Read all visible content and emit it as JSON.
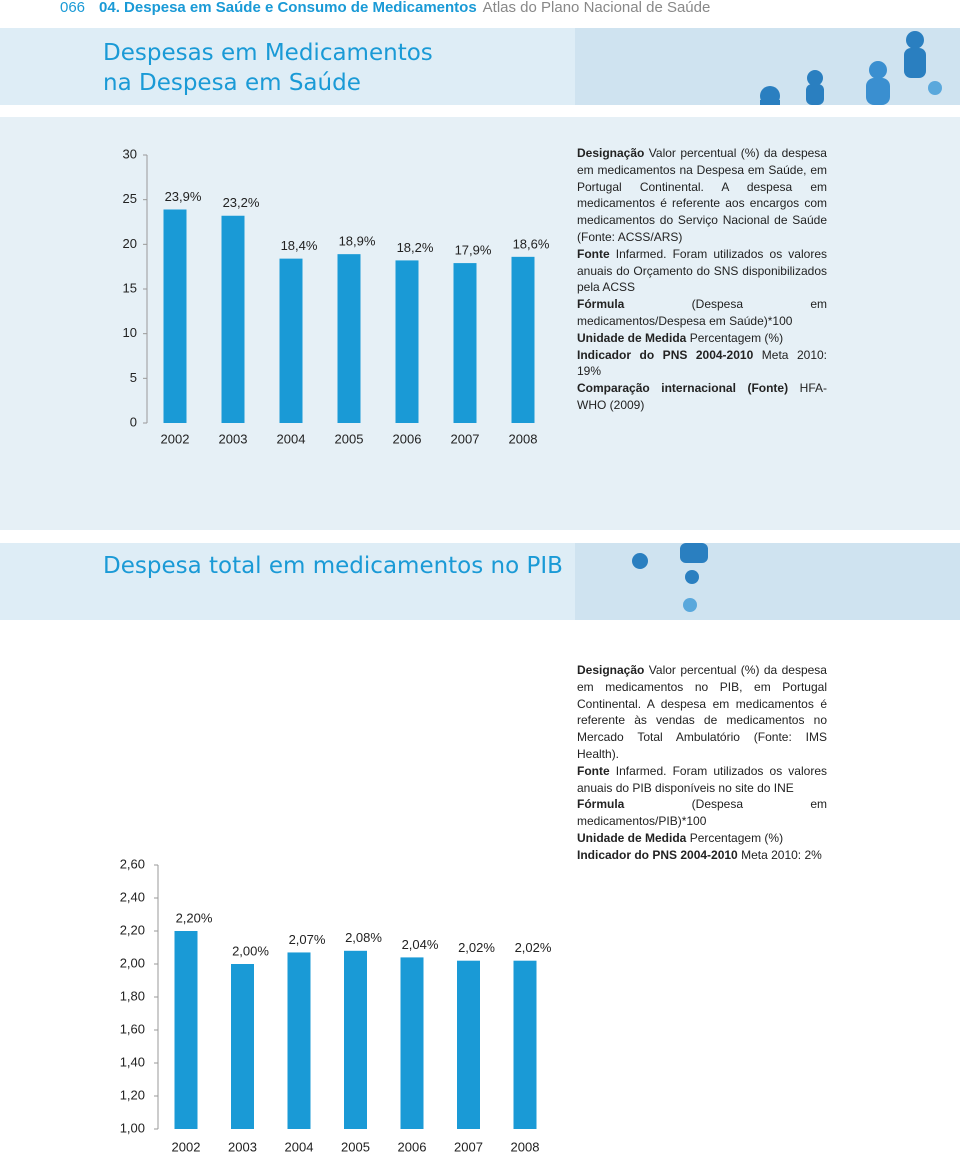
{
  "header": {
    "page": "066",
    "chapter": "04. Despesa em Saúde e Consumo de Medicamentos",
    "book": "Atlas do Plano Nacional de Saúde"
  },
  "sections": [
    {
      "title": [
        "Despesas em Medicamentos",
        "na Despesa em Saúde"
      ],
      "items": [
        {
          "label": "Designação",
          "text": "Valor percentual (%) da despesa em medicamentos na Despesa em Saúde, em Portugal Continental. A despesa em medicamentos é referente aos encargos com medicamentos do Serviço Nacional de Saúde (Fonte: ACSS/ARS)"
        },
        {
          "label": "Fonte",
          "text": "Infarmed. Foram utilizados os valores anuais do Orçamento do SNS disponibilizados pela ACSS"
        },
        {
          "label": "Fórmula",
          "text": "(Despesa em medicamentos/Despesa em Saúde)*100"
        },
        {
          "label": "Unidade de Medida",
          "text": "Percentagem (%)"
        },
        {
          "label": "Indicador do PNS 2004-2010",
          "text": "Meta 2010: 19%"
        },
        {
          "label": "Comparação internacional (Fonte)",
          "text": "HFA-WHO (2009)"
        }
      ]
    },
    {
      "title": [
        "Despesa total em medicamentos no PIB"
      ],
      "items": [
        {
          "label": "Designação",
          "text": "Valor percentual (%) da despesa em medicamentos no PIB, em Portugal Continental. A despesa em medicamentos é referente às vendas de medicamentos no Mercado Total Ambulatório (Fonte: IMS Health)."
        },
        {
          "label": "Fonte",
          "text": "Infarmed. Foram utilizados os valores anuais do PIB disponíveis no site do INE"
        },
        {
          "label": "Fórmula",
          "text": "(Despesa em medicamentos/PIB)*100"
        },
        {
          "label": "Unidade de Medida",
          "text": "Percentagem (%)"
        },
        {
          "label": "Indicador do PNS 2004-2010",
          "text": "Meta 2010: 2%"
        }
      ]
    }
  ],
  "chart_data": [
    {
      "type": "bar",
      "color": "#1a9ad6",
      "categories": [
        "2002",
        "2003",
        "2004",
        "2005",
        "2006",
        "2007",
        "2008"
      ],
      "values": [
        23.9,
        23.2,
        18.4,
        18.9,
        18.2,
        17.9,
        18.6
      ],
      "value_labels": [
        "23,9%",
        "23,2%",
        "18,4%",
        "18,9%",
        "18,2%",
        "17,9%",
        "18,6%"
      ],
      "ylim": [
        0,
        30
      ],
      "yticks": [
        0,
        5,
        10,
        15,
        20,
        25,
        30
      ]
    },
    {
      "type": "bar",
      "color": "#1a9ad6",
      "categories": [
        "2002",
        "2003",
        "2004",
        "2005",
        "2006",
        "2007",
        "2008"
      ],
      "values": [
        2.2,
        2.0,
        2.07,
        2.08,
        2.04,
        2.02,
        2.02
      ],
      "value_labels": [
        "2,20%",
        "2,00%",
        "2,07%",
        "2,08%",
        "2,04%",
        "2,02%",
        "2,02%"
      ],
      "ylim": [
        1,
        2.6
      ],
      "yticks": [
        {
          "value": 1,
          "label": "1,00"
        },
        {
          "value": 1.2,
          "label": "1,20"
        },
        {
          "value": 1.4,
          "label": "1,40"
        },
        {
          "value": 1.6,
          "label": "1,60"
        },
        {
          "value": 1.8,
          "label": "1,80"
        },
        {
          "value": 2,
          "label": "2,00"
        },
        {
          "value": 2.2,
          "label": "2,20"
        },
        {
          "value": 2.4,
          "label": "2,40"
        },
        {
          "value": 2.6,
          "label": "2,60"
        }
      ]
    }
  ]
}
